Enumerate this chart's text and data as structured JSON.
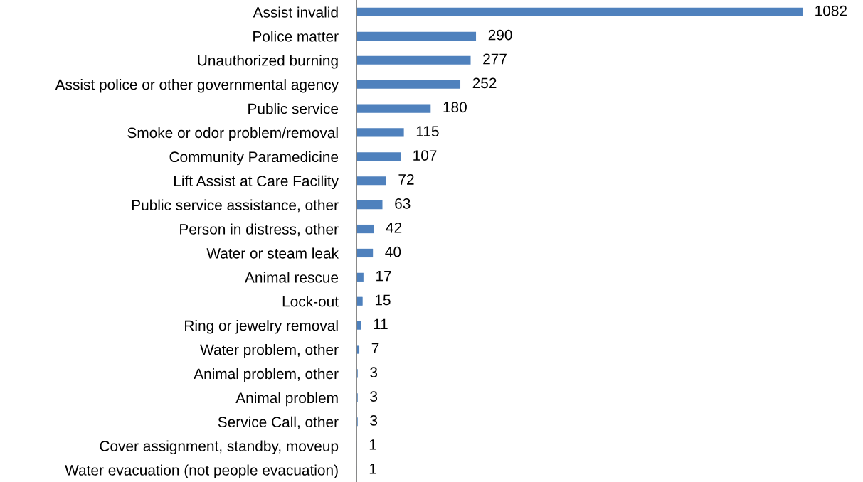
{
  "chart_data": {
    "type": "bar",
    "orientation": "horizontal",
    "categories": [
      "Assist invalid",
      "Police matter",
      "Unauthorized burning",
      "Assist police or other governmental agency",
      "Public service",
      "Smoke or odor problem/removal",
      "Community Paramedicine",
      "Lift Assist at Care Facility",
      "Public service assistance, other",
      "Person in distress, other",
      "Water or steam leak",
      "Animal rescue",
      "Lock-out",
      "Ring or jewelry removal",
      "Water problem, other",
      "Animal problem, other",
      "Animal problem",
      "Service Call, other",
      "Cover assignment, standby, moveup",
      "Water evacuation (not people evacuation)"
    ],
    "values": [
      1082,
      290,
      277,
      252,
      180,
      115,
      107,
      72,
      63,
      42,
      40,
      17,
      15,
      11,
      7,
      3,
      3,
      3,
      1,
      1
    ],
    "color": "#4f81bd",
    "data_labels": true,
    "tick_labels": "y"
  }
}
